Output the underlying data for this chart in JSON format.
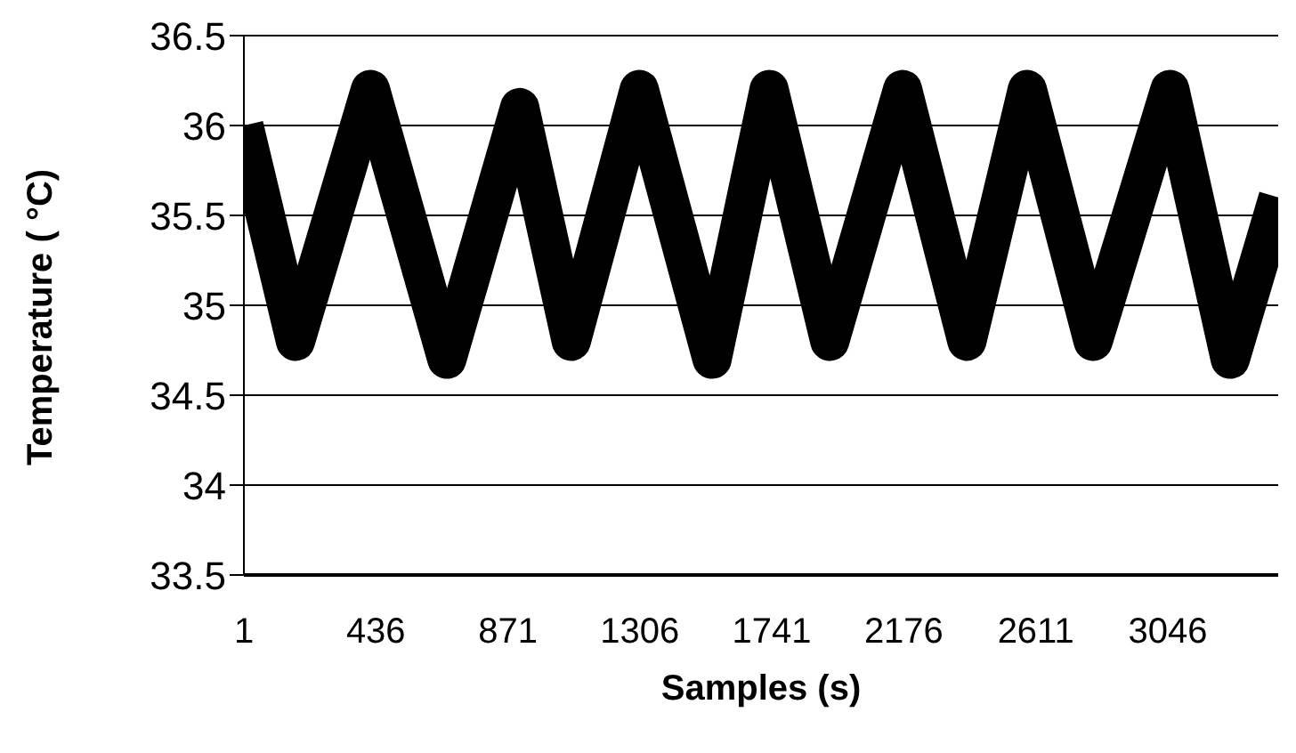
{
  "chart_data": {
    "type": "line",
    "xlabel": "Samples (s)",
    "ylabel": "Temperature ( °C)",
    "x": [
      1,
      171,
      418,
      670,
      910,
      1080,
      1304,
      1544,
      1732,
      1932,
      2172,
      2384,
      2583,
      2800,
      3053,
      3252,
      3410
    ],
    "series": [
      {
        "color": "#000000",
        "values": [
          36.0,
          34.8,
          36.2,
          34.7,
          36.1,
          34.8,
          36.2,
          34.7,
          36.2,
          34.8,
          36.2,
          34.8,
          36.2,
          34.8,
          36.2,
          34.7,
          35.6
        ]
      }
    ],
    "xlim": [
      1,
      3410
    ],
    "xticks": [
      1,
      436,
      871,
      1306,
      1741,
      2176,
      2611,
      3046
    ],
    "ylim": [
      33.5,
      36.5
    ],
    "yticks": [
      33.5,
      34,
      34.5,
      35,
      35.5,
      36,
      36.5
    ],
    "grid": "y",
    "legend": false,
    "marker": "none",
    "line_style": "solid"
  }
}
